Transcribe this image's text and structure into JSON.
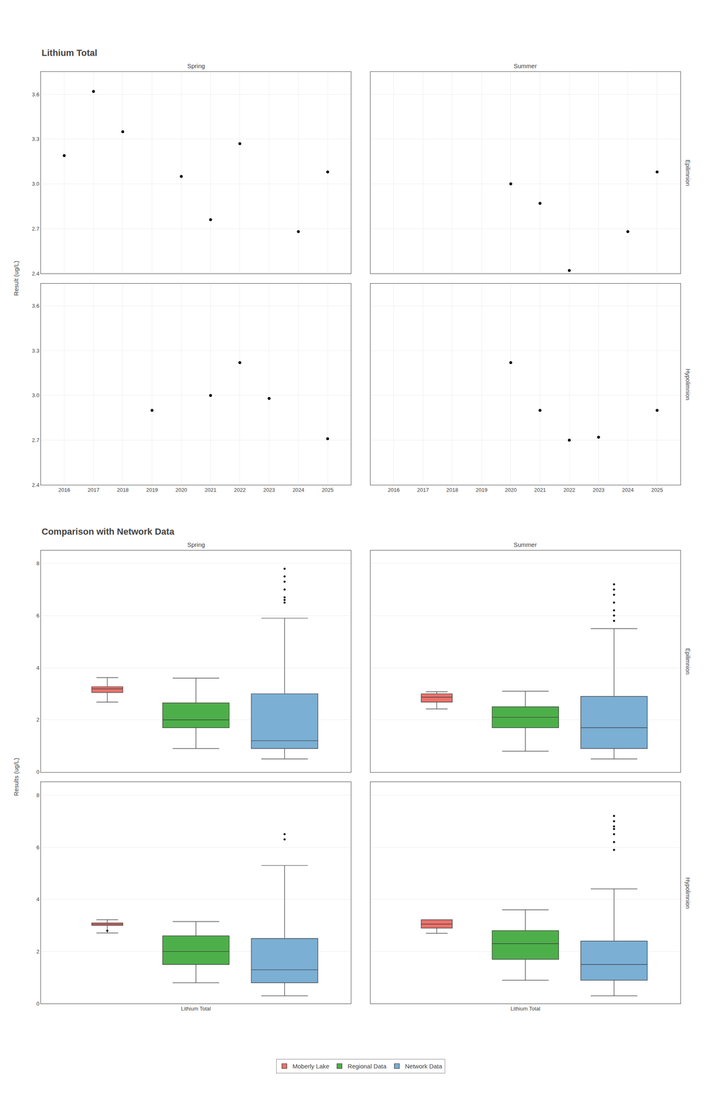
{
  "chart_data": [
    {
      "type": "scatter",
      "title": "Lithium Total",
      "ylabel": "Result (ug/L)",
      "columns": [
        "Spring",
        "Summer"
      ],
      "rows": [
        "Epilimnion",
        "Hypolimnion"
      ],
      "xlim": [
        2015.2,
        2025.8
      ],
      "xticks": [
        2016,
        2017,
        2018,
        2019,
        2020,
        2021,
        2022,
        2023,
        2024,
        2025
      ],
      "ylim": [
        2.4,
        3.75
      ],
      "yticks": [
        2.4,
        2.7,
        {
          "value": 3.0,
          "label": "3.0"
        },
        3.3,
        3.6
      ],
      "grid": true,
      "color": "black",
      "marker": "circle",
      "panels": [
        {
          "x": [
            2016,
            2017,
            2018,
            2020,
            2021,
            2022,
            2024,
            2025
          ],
          "values": [
            3.19,
            3.62,
            3.35,
            3.05,
            2.76,
            3.27,
            2.68,
            3.08
          ]
        },
        {
          "x": [
            2020,
            2021,
            2022,
            2024,
            2025
          ],
          "values": [
            3.0,
            2.87,
            2.42,
            2.68,
            3.08
          ]
        },
        {
          "x": [
            2019,
            2021,
            2022,
            2023,
            2025
          ],
          "values": [
            2.9,
            3.0,
            3.22,
            2.98,
            2.71
          ]
        },
        {
          "x": [
            2020,
            2021,
            2022,
            2023,
            2025
          ],
          "values": [
            3.22,
            2.9,
            2.7,
            2.72,
            2.9
          ]
        }
      ]
    },
    {
      "type": "box",
      "title": "Comparison with Network Data",
      "ylabel": "Results (ug/L)",
      "columns": [
        "Spring",
        "Summer"
      ],
      "rows": [
        "Epilimnion",
        "Hypolimnion"
      ],
      "categories": [
        "Lithium Total"
      ],
      "ylim": [
        0,
        8.5
      ],
      "yticks": [
        0,
        2,
        4,
        6,
        8
      ],
      "grid": true,
      "legend": "bottom",
      "series": [
        {
          "name": "Moberly Lake",
          "color": "#E8736C"
        },
        {
          "name": "Regional Data",
          "color": "#4DAF4A"
        },
        {
          "name": "Network Data",
          "color": "#7BAFD4"
        }
      ],
      "panels": [
        {
          "boxes": [
            {
              "q1": 3.05,
              "median": 3.19,
              "q3": 3.27,
              "whislo": 2.68,
              "whishi": 3.62,
              "fliers": []
            },
            {
              "q1": 1.7,
              "median": 2.0,
              "q3": 2.65,
              "whislo": 0.9,
              "whishi": 3.6,
              "fliers": []
            },
            {
              "q1": 0.9,
              "median": 1.2,
              "q3": 3.0,
              "whislo": 0.5,
              "whishi": 5.9,
              "fliers": [
                6.5,
                6.6,
                6.7,
                7.0,
                7.3,
                7.5,
                7.8
              ]
            }
          ]
        },
        {
          "boxes": [
            {
              "q1": 2.68,
              "median": 2.87,
              "q3": 3.0,
              "whislo": 2.42,
              "whishi": 3.08,
              "fliers": []
            },
            {
              "q1": 1.7,
              "median": 2.1,
              "q3": 2.5,
              "whislo": 0.8,
              "whishi": 3.1,
              "fliers": []
            },
            {
              "q1": 0.9,
              "median": 1.7,
              "q3": 2.9,
              "whislo": 0.5,
              "whishi": 5.5,
              "fliers": [
                5.8,
                6.0,
                6.2,
                6.5,
                6.8,
                7.0,
                7.2
              ]
            }
          ]
        },
        {
          "boxes": [
            {
              "q1": 3.0,
              "median": 3.05,
              "q3": 3.1,
              "whislo": 2.71,
              "whishi": 3.22,
              "fliers": [
                2.8
              ]
            },
            {
              "q1": 1.5,
              "median": 2.0,
              "q3": 2.6,
              "whislo": 0.8,
              "whishi": 3.15,
              "fliers": []
            },
            {
              "q1": 0.8,
              "median": 1.3,
              "q3": 2.5,
              "whislo": 0.3,
              "whishi": 5.3,
              "fliers": [
                6.3,
                6.5
              ]
            }
          ]
        },
        {
          "boxes": [
            {
              "q1": 2.9,
              "median": 3.05,
              "q3": 3.22,
              "whislo": 2.7,
              "whishi": 3.22,
              "fliers": []
            },
            {
              "q1": 1.7,
              "median": 2.3,
              "q3": 2.8,
              "whislo": 0.9,
              "whishi": 3.6,
              "fliers": []
            },
            {
              "q1": 0.9,
              "median": 1.5,
              "q3": 2.4,
              "whislo": 0.3,
              "whishi": 4.4,
              "fliers": [
                5.9,
                6.2,
                6.5,
                6.7,
                6.8,
                7.0,
                7.2
              ]
            }
          ]
        }
      ]
    }
  ]
}
